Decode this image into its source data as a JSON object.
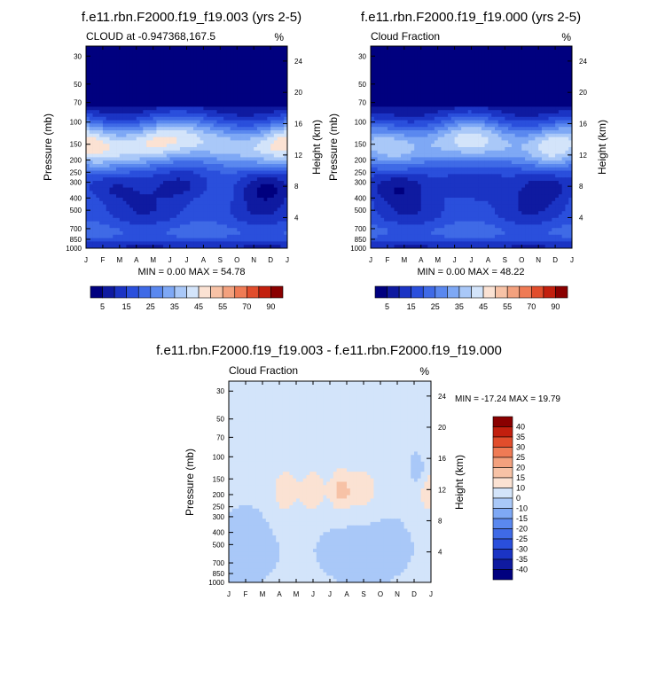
{
  "panels": [
    {
      "title": "f.e11.rbn.F2000.f19_f19.003 (yrs 2-5)",
      "left_label": "CLOUD at -0.947368,167.5",
      "right_label": "%",
      "ylabel": "Pressure (mb)",
      "y2label": "Height (km)",
      "minmax": "MIN =   0.00 MAX =  54.78",
      "variant": 0
    },
    {
      "title": "f.e11.rbn.F2000.f19_f19.000 (yrs 2-5)",
      "left_label": "Cloud Fraction",
      "right_label": "%",
      "ylabel": "Pressure (mb)",
      "y2label": "Height (km)",
      "minmax": "MIN =   0.00 MAX =  48.22",
      "variant": 1
    }
  ],
  "diff_panel": {
    "title": "f.e11.rbn.F2000.f19_f19.003 - f.e11.rbn.F2000.f19_f19.000",
    "left_label": "Cloud Fraction",
    "right_label": "%",
    "ylabel": "Pressure (mb)",
    "y2label": "Height (km)",
    "minmax": "MIN = -17.24 MAX =  19.79"
  },
  "chart_data": [
    {
      "type": "heatmap",
      "title": "f.e11.rbn.F2000.f19_f19.003 (yrs 2-5)",
      "subtitle": "CLOUD at -0.947368,167.5",
      "units": "%",
      "xlabel": "",
      "ylabel": "Pressure (mb)",
      "y2label": "Height (km)",
      "x_ticks": [
        "J",
        "F",
        "M",
        "A",
        "M",
        "J",
        "J",
        "A",
        "S",
        "O",
        "N",
        "D",
        "J"
      ],
      "y_ticks": [
        30,
        50,
        70,
        100,
        150,
        200,
        250,
        300,
        400,
        500,
        700,
        850,
        1000
      ],
      "y2_ticks": [
        24,
        20,
        16,
        12,
        8,
        4
      ],
      "ylim": [
        1000,
        25
      ],
      "min": 0.0,
      "max": 54.78,
      "levels": [
        5,
        10,
        15,
        20,
        25,
        30,
        35,
        40,
        45,
        50,
        55,
        60,
        70,
        80,
        90
      ],
      "colorbar_labels": [
        "5",
        "15",
        "25",
        "35",
        "45",
        "55",
        "70",
        "90"
      ]
    },
    {
      "type": "heatmap",
      "title": "f.e11.rbn.F2000.f19_f19.000 (yrs 2-5)",
      "subtitle": "Cloud Fraction",
      "units": "%",
      "xlabel": "",
      "ylabel": "Pressure (mb)",
      "y2label": "Height (km)",
      "x_ticks": [
        "J",
        "F",
        "M",
        "A",
        "M",
        "J",
        "J",
        "A",
        "S",
        "O",
        "N",
        "D",
        "J"
      ],
      "y_ticks": [
        30,
        50,
        70,
        100,
        150,
        200,
        250,
        300,
        400,
        500,
        700,
        850,
        1000
      ],
      "y2_ticks": [
        24,
        20,
        16,
        12,
        8,
        4
      ],
      "ylim": [
        1000,
        25
      ],
      "min": 0.0,
      "max": 48.22,
      "levels": [
        5,
        10,
        15,
        20,
        25,
        30,
        35,
        40,
        45,
        50,
        55,
        60,
        70,
        80,
        90
      ],
      "colorbar_labels": [
        "5",
        "15",
        "25",
        "35",
        "45",
        "55",
        "70",
        "90"
      ]
    },
    {
      "type": "heatmap",
      "title": "f.e11.rbn.F2000.f19_f19.003 - f.e11.rbn.F2000.f19_f19.000",
      "subtitle": "Cloud Fraction",
      "units": "%",
      "xlabel": "",
      "ylabel": "Pressure (mb)",
      "y2label": "Height (km)",
      "x_ticks": [
        "J",
        "F",
        "M",
        "A",
        "M",
        "J",
        "J",
        "A",
        "S",
        "O",
        "N",
        "D",
        "J"
      ],
      "y_ticks": [
        30,
        50,
        70,
        100,
        150,
        200,
        250,
        300,
        400,
        500,
        700,
        850,
        1000
      ],
      "y2_ticks": [
        24,
        20,
        16,
        12,
        8,
        4
      ],
      "ylim": [
        1000,
        25
      ],
      "min": -17.24,
      "max": 19.79,
      "levels": [
        -40,
        -35,
        -30,
        -25,
        -20,
        -15,
        -10,
        0,
        10,
        15,
        20,
        25,
        30,
        35,
        40
      ],
      "colorbar_labels": [
        "40",
        "35",
        "30",
        "25",
        "20",
        "15",
        "10",
        "0",
        "-10",
        "-15",
        "-20",
        "-25",
        "-30",
        "-35",
        "-40"
      ]
    }
  ],
  "colors": {
    "seq": [
      "#00007f",
      "#0f1aa0",
      "#1b34c4",
      "#2a4fdc",
      "#3f6ae6",
      "#5a88ef",
      "#7ea8f5",
      "#a9c8f8",
      "#d3e4fa",
      "#fbe2d3",
      "#f7c2a6",
      "#f3a17e",
      "#ef7b55",
      "#e14d2c",
      "#c21f0e",
      "#8a0000"
    ],
    "div": [
      "#00007f",
      "#0f1aa0",
      "#1b34c4",
      "#2a4fdc",
      "#3f6ae6",
      "#5a88ef",
      "#7ea8f5",
      "#a9c8f8",
      "#d3e4fa",
      "#fbe2d3",
      "#f7c2a6",
      "#f3a17e",
      "#ef7b55",
      "#e14d2c",
      "#c21f0e",
      "#8a0000"
    ]
  }
}
